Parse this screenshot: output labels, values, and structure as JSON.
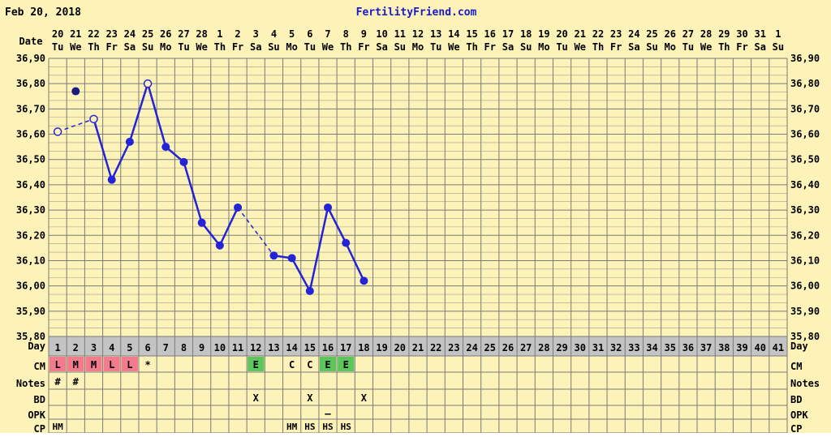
{
  "header": {
    "date": "Feb 20, 2018",
    "brand": "FertilityFriend.com"
  },
  "row_labels": {
    "date": "Date",
    "day": "Day",
    "cm": "CM",
    "notes": "Notes",
    "bd": "BD",
    "opk": "OPK",
    "cp": "CP"
  },
  "colors": {
    "background": "#fdf2b8",
    "grid": "#7a7a7a",
    "line": "#2323d8",
    "brand": "#1a1acc",
    "day_row_bg": "#c4c4c4",
    "cm_menstrual": "#f27b8d",
    "cm_egg_white": "#5cc65c"
  },
  "dates": [
    "20",
    "21",
    "22",
    "23",
    "24",
    "25",
    "26",
    "27",
    "28",
    "1",
    "2",
    "3",
    "4",
    "5",
    "6",
    "7",
    "8",
    "9",
    "10",
    "11",
    "12",
    "13",
    "14",
    "15",
    "16",
    "17",
    "18",
    "19",
    "20",
    "21",
    "22",
    "23",
    "24",
    "25",
    "26",
    "27",
    "28",
    "29",
    "30",
    "31",
    "1"
  ],
  "weekdays": [
    "Tu",
    "We",
    "Th",
    "Fr",
    "Sa",
    "Su",
    "Mo",
    "Tu",
    "We",
    "Th",
    "Fr",
    "Sa",
    "Su",
    "Mo",
    "Tu",
    "We",
    "Th",
    "Fr",
    "Sa",
    "Su",
    "Mo",
    "Tu",
    "We",
    "Th",
    "Fr",
    "Sa",
    "Su",
    "Mo",
    "Tu",
    "We",
    "Th",
    "Fr",
    "Sa",
    "Su",
    "Mo",
    "Tu",
    "We",
    "Th",
    "Fr",
    "Sa",
    "Su"
  ],
  "y_ticks": [
    "36,90",
    "36,80",
    "36,70",
    "36,60",
    "36,50",
    "36,40",
    "36,30",
    "36,20",
    "36,10",
    "36,00",
    "35,90",
    "35,80"
  ],
  "cm": [
    {
      "day": 1,
      "text": "L",
      "style": "menstrual"
    },
    {
      "day": 2,
      "text": "M",
      "style": "menstrual"
    },
    {
      "day": 3,
      "text": "M",
      "style": "menstrual"
    },
    {
      "day": 4,
      "text": "L",
      "style": "menstrual"
    },
    {
      "day": 5,
      "text": "L",
      "style": "menstrual"
    },
    {
      "day": 6,
      "text": "*",
      "style": "plain"
    },
    {
      "day": 12,
      "text": "E",
      "style": "egg_white"
    },
    {
      "day": 14,
      "text": "C",
      "style": "plain"
    },
    {
      "day": 15,
      "text": "C",
      "style": "plain"
    },
    {
      "day": 16,
      "text": "E",
      "style": "egg_white"
    },
    {
      "day": 17,
      "text": "E",
      "style": "egg_white"
    }
  ],
  "notes": [
    {
      "day": 1,
      "text": "#"
    },
    {
      "day": 2,
      "text": "#"
    }
  ],
  "bd": [
    {
      "day": 12,
      "text": "X"
    },
    {
      "day": 15,
      "text": "X"
    },
    {
      "day": 18,
      "text": "X"
    }
  ],
  "opk": [
    {
      "day": 16,
      "text": "–"
    }
  ],
  "cp": [
    {
      "day": 1,
      "text": "HM"
    },
    {
      "day": 14,
      "text": "HM"
    },
    {
      "day": 15,
      "text": "HS"
    },
    {
      "day": 16,
      "text": "HS"
    },
    {
      "day": 17,
      "text": "HS"
    }
  ],
  "chart_data": {
    "type": "line",
    "title": "",
    "xlabel": "Day",
    "ylabel": "",
    "ylim": [
      35.8,
      36.9
    ],
    "xlim": [
      1,
      41
    ],
    "grid": true,
    "series": [
      {
        "points": [
          {
            "day": 1,
            "temp": 36.61,
            "marker": "open"
          },
          {
            "day": 2,
            "temp": 36.77,
            "marker": "filled",
            "standalone": true
          },
          {
            "day": 3,
            "temp": 36.66,
            "marker": "open"
          },
          {
            "day": 4,
            "temp": 36.42,
            "marker": "filled"
          },
          {
            "day": 5,
            "temp": 36.57,
            "marker": "filled"
          },
          {
            "day": 6,
            "temp": 36.8,
            "marker": "open"
          },
          {
            "day": 7,
            "temp": 36.55,
            "marker": "filled"
          },
          {
            "day": 8,
            "temp": 36.49,
            "marker": "filled"
          },
          {
            "day": 9,
            "temp": 36.25,
            "marker": "filled"
          },
          {
            "day": 10,
            "temp": 36.16,
            "marker": "filled"
          },
          {
            "day": 11,
            "temp": 36.31,
            "marker": "filled"
          },
          {
            "day": 13,
            "temp": 36.12,
            "marker": "filled"
          },
          {
            "day": 14,
            "temp": 36.11,
            "marker": "filled"
          },
          {
            "day": 15,
            "temp": 35.98,
            "marker": "filled"
          },
          {
            "day": 16,
            "temp": 36.31,
            "marker": "filled"
          },
          {
            "day": 17,
            "temp": 36.17,
            "marker": "filled"
          },
          {
            "day": 18,
            "temp": 36.02,
            "marker": "filled"
          }
        ],
        "segments": [
          {
            "from": 1,
            "to": 3,
            "style": "dashed"
          },
          {
            "from": 3,
            "to": 4,
            "style": "solid"
          },
          {
            "from": 4,
            "to": 5,
            "style": "solid"
          },
          {
            "from": 5,
            "to": 6,
            "style": "solid"
          },
          {
            "from": 6,
            "to": 7,
            "style": "solid"
          },
          {
            "from": 7,
            "to": 8,
            "style": "solid"
          },
          {
            "from": 8,
            "to": 9,
            "style": "solid"
          },
          {
            "from": 9,
            "to": 10,
            "style": "solid"
          },
          {
            "from": 10,
            "to": 11,
            "style": "solid"
          },
          {
            "from": 11,
            "to": 13,
            "style": "dashed"
          },
          {
            "from": 13,
            "to": 14,
            "style": "solid"
          },
          {
            "from": 14,
            "to": 15,
            "style": "solid"
          },
          {
            "from": 15,
            "to": 16,
            "style": "solid"
          },
          {
            "from": 16,
            "to": 17,
            "style": "solid"
          },
          {
            "from": 17,
            "to": 18,
            "style": "solid"
          }
        ]
      }
    ]
  }
}
